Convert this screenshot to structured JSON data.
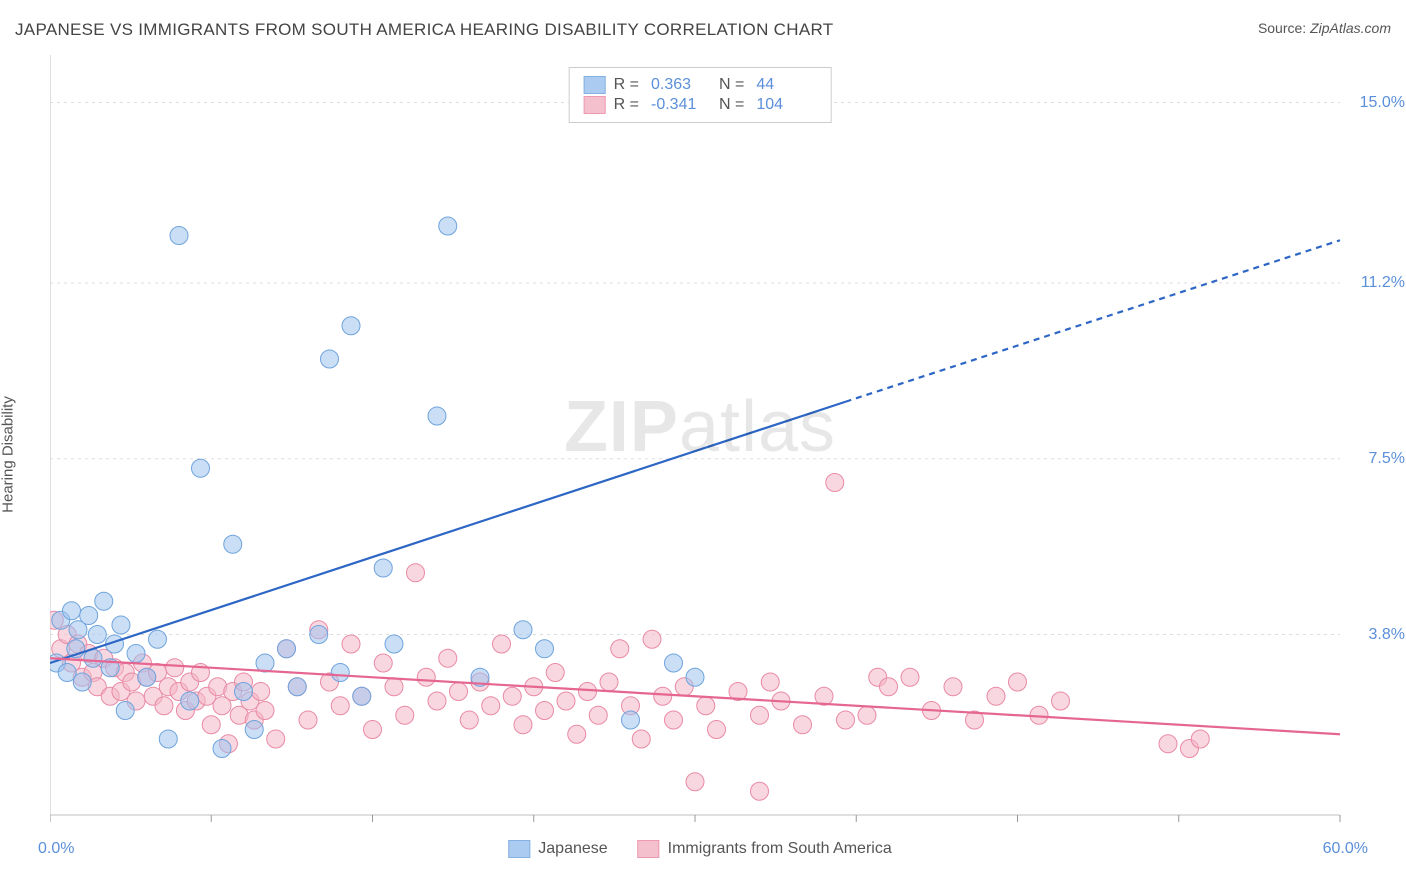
{
  "title": "JAPANESE VS IMMIGRANTS FROM SOUTH AMERICA HEARING DISABILITY CORRELATION CHART",
  "source_label": "Source:",
  "source_name": "ZipAtlas.com",
  "y_axis_label": "Hearing Disability",
  "watermark_zip": "ZIP",
  "watermark_atlas": "atlas",
  "chart": {
    "type": "scatter-with-regression",
    "background_color": "#ffffff",
    "grid_color": "#dddddd",
    "axis_color": "#cccccc",
    "tick_color": "#999999",
    "label_color": "#5b8fd9",
    "xlim": [
      0,
      60
    ],
    "ylim": [
      0,
      16
    ],
    "x_origin_label": "0.0%",
    "x_max_label": "60.0%",
    "y_gridlines": [
      3.8,
      7.5,
      11.2,
      15.0
    ],
    "y_gridline_labels": [
      "3.8%",
      "7.5%",
      "11.2%",
      "15.0%"
    ],
    "x_ticks": [
      0,
      7.5,
      15,
      22.5,
      30,
      37.5,
      45,
      52.5,
      60
    ],
    "marker_radius": 9,
    "marker_stroke_width": 1,
    "line_width": 2.2,
    "series": [
      {
        "name": "Japanese",
        "fill": "#9ec2ee",
        "fill_opacity": 0.55,
        "stroke": "#6fa4dc",
        "line_color": "#2d66c4",
        "R": "0.363",
        "N": "44",
        "regression": {
          "x0": 0,
          "y0": 3.2,
          "x1": 37,
          "y1": 8.7,
          "x2": 60,
          "y2": 12.1,
          "dash_from": 37
        },
        "points": [
          [
            0.3,
            3.2
          ],
          [
            0.5,
            4.1
          ],
          [
            0.8,
            3.0
          ],
          [
            1.0,
            4.3
          ],
          [
            1.2,
            3.5
          ],
          [
            1.3,
            3.9
          ],
          [
            1.5,
            2.8
          ],
          [
            1.8,
            4.2
          ],
          [
            2.0,
            3.3
          ],
          [
            2.2,
            3.8
          ],
          [
            2.5,
            4.5
          ],
          [
            2.8,
            3.1
          ],
          [
            3.0,
            3.6
          ],
          [
            3.3,
            4.0
          ],
          [
            3.5,
            2.2
          ],
          [
            4.0,
            3.4
          ],
          [
            4.5,
            2.9
          ],
          [
            5.0,
            3.7
          ],
          [
            5.5,
            1.6
          ],
          [
            6.0,
            12.2
          ],
          [
            6.5,
            2.4
          ],
          [
            7.0,
            7.3
          ],
          [
            8.0,
            1.4
          ],
          [
            8.5,
            5.7
          ],
          [
            9.0,
            2.6
          ],
          [
            9.5,
            1.8
          ],
          [
            10.0,
            3.2
          ],
          [
            11.0,
            3.5
          ],
          [
            11.5,
            2.7
          ],
          [
            12.5,
            3.8
          ],
          [
            13.0,
            9.6
          ],
          [
            13.5,
            3.0
          ],
          [
            14.0,
            10.3
          ],
          [
            14.5,
            2.5
          ],
          [
            15.5,
            5.2
          ],
          [
            16.0,
            3.6
          ],
          [
            18.0,
            8.4
          ],
          [
            18.5,
            12.4
          ],
          [
            20.0,
            2.9
          ],
          [
            22.0,
            3.9
          ],
          [
            23.0,
            3.5
          ],
          [
            27.0,
            2.0
          ],
          [
            29.0,
            3.2
          ],
          [
            30.0,
            2.9
          ]
        ]
      },
      {
        "name": "Immigrants from South America",
        "fill": "#f4b6c6",
        "fill_opacity": 0.55,
        "stroke": "#e98aa5",
        "line_color": "#e56691",
        "R": "-0.341",
        "N": "104",
        "regression": {
          "x0": 0,
          "y0": 3.3,
          "x1": 60,
          "y1": 1.7
        },
        "points": [
          [
            0.2,
            4.1
          ],
          [
            0.5,
            3.5
          ],
          [
            0.8,
            3.8
          ],
          [
            1.0,
            3.2
          ],
          [
            1.3,
            3.6
          ],
          [
            1.5,
            2.9
          ],
          [
            1.8,
            3.4
          ],
          [
            2.0,
            3.0
          ],
          [
            2.2,
            2.7
          ],
          [
            2.5,
            3.3
          ],
          [
            2.8,
            2.5
          ],
          [
            3.0,
            3.1
          ],
          [
            3.3,
            2.6
          ],
          [
            3.5,
            3.0
          ],
          [
            3.8,
            2.8
          ],
          [
            4.0,
            2.4
          ],
          [
            4.3,
            3.2
          ],
          [
            4.5,
            2.9
          ],
          [
            4.8,
            2.5
          ],
          [
            5.0,
            3.0
          ],
          [
            5.3,
            2.3
          ],
          [
            5.5,
            2.7
          ],
          [
            5.8,
            3.1
          ],
          [
            6.0,
            2.6
          ],
          [
            6.3,
            2.2
          ],
          [
            6.5,
            2.8
          ],
          [
            6.8,
            2.4
          ],
          [
            7.0,
            3.0
          ],
          [
            7.3,
            2.5
          ],
          [
            7.5,
            1.9
          ],
          [
            7.8,
            2.7
          ],
          [
            8.0,
            2.3
          ],
          [
            8.3,
            1.5
          ],
          [
            8.5,
            2.6
          ],
          [
            8.8,
            2.1
          ],
          [
            9.0,
            2.8
          ],
          [
            9.3,
            2.4
          ],
          [
            9.5,
            2.0
          ],
          [
            9.8,
            2.6
          ],
          [
            10.0,
            2.2
          ],
          [
            10.5,
            1.6
          ],
          [
            11.0,
            3.5
          ],
          [
            11.5,
            2.7
          ],
          [
            12.0,
            2.0
          ],
          [
            12.5,
            3.9
          ],
          [
            13.0,
            2.8
          ],
          [
            13.5,
            2.3
          ],
          [
            14.0,
            3.6
          ],
          [
            14.5,
            2.5
          ],
          [
            15.0,
            1.8
          ],
          [
            15.5,
            3.2
          ],
          [
            16.0,
            2.7
          ],
          [
            16.5,
            2.1
          ],
          [
            17.0,
            5.1
          ],
          [
            17.5,
            2.9
          ],
          [
            18.0,
            2.4
          ],
          [
            18.5,
            3.3
          ],
          [
            19.0,
            2.6
          ],
          [
            19.5,
            2.0
          ],
          [
            20.0,
            2.8
          ],
          [
            20.5,
            2.3
          ],
          [
            21.0,
            3.6
          ],
          [
            21.5,
            2.5
          ],
          [
            22.0,
            1.9
          ],
          [
            22.5,
            2.7
          ],
          [
            23.0,
            2.2
          ],
          [
            23.5,
            3.0
          ],
          [
            24.0,
            2.4
          ],
          [
            24.5,
            1.7
          ],
          [
            25.0,
            2.6
          ],
          [
            25.5,
            2.1
          ],
          [
            26.0,
            2.8
          ],
          [
            26.5,
            3.5
          ],
          [
            27.0,
            2.3
          ],
          [
            27.5,
            1.6
          ],
          [
            28.0,
            3.7
          ],
          [
            28.5,
            2.5
          ],
          [
            29.0,
            2.0
          ],
          [
            29.5,
            2.7
          ],
          [
            30.0,
            0.7
          ],
          [
            30.5,
            2.3
          ],
          [
            31.0,
            1.8
          ],
          [
            32.0,
            2.6
          ],
          [
            33.0,
            2.1
          ],
          [
            33.5,
            2.8
          ],
          [
            34.0,
            2.4
          ],
          [
            35.0,
            1.9
          ],
          [
            36.0,
            2.5
          ],
          [
            36.5,
            7.0
          ],
          [
            37.0,
            2.0
          ],
          [
            38.0,
            2.1
          ],
          [
            38.5,
            2.9
          ],
          [
            39.0,
            2.7
          ],
          [
            40.0,
            2.9
          ],
          [
            41.0,
            2.2
          ],
          [
            42.0,
            2.7
          ],
          [
            43.0,
            2.0
          ],
          [
            44.0,
            2.5
          ],
          [
            45.0,
            2.8
          ],
          [
            46.0,
            2.1
          ],
          [
            47.0,
            2.4
          ],
          [
            52.0,
            1.5
          ],
          [
            53.0,
            1.4
          ],
          [
            53.5,
            1.6
          ],
          [
            33.0,
            0.5
          ]
        ]
      }
    ]
  }
}
